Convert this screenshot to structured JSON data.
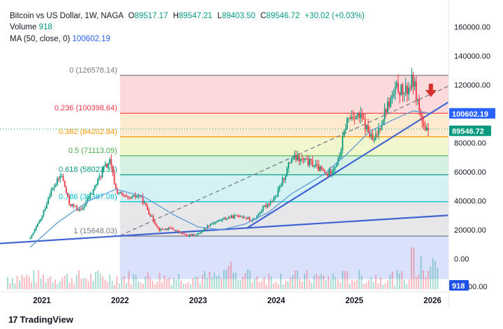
{
  "header": {
    "line1": "Bitcoin vs US Dollar, 1W, NAGA",
    "open_label": "O",
    "open": "89517.17",
    "high_label": "H",
    "high": "89547.21",
    "low_label": "L",
    "low": "89403.50",
    "close_label": "C",
    "close": "89546.72",
    "change": "+30.02 (+0.03%)",
    "volume_label": "Volume",
    "volume": "918",
    "ma_label": "MA (50, close, 0)",
    "ma_value": "100602.19"
  },
  "chart_data": {
    "type": "line",
    "title": "Bitcoin vs US Dollar, 1W, NAGA",
    "x_ticks": [
      "2021",
      "2022",
      "2023",
      "2024",
      "2025",
      "2026"
    ],
    "y_ticks": [
      "160000.00",
      "140000.00",
      "120000.00",
      "100000.00",
      "80000.00",
      "60000.00",
      "40000.00",
      "20000.00",
      "0.00"
    ],
    "volume_axis_label": "00.00",
    "ylim": [
      -15000,
      165000
    ],
    "price_series": [
      {
        "x": 2020.85,
        "y": 14000
      },
      {
        "x": 2021.0,
        "y": 29000
      },
      {
        "x": 2021.1,
        "y": 45000
      },
      {
        "x": 2021.25,
        "y": 58000
      },
      {
        "x": 2021.35,
        "y": 38000
      },
      {
        "x": 2021.5,
        "y": 33000
      },
      {
        "x": 2021.65,
        "y": 47000
      },
      {
        "x": 2021.8,
        "y": 63000
      },
      {
        "x": 2021.87,
        "y": 67000
      },
      {
        "x": 2021.95,
        "y": 47000
      },
      {
        "x": 2022.1,
        "y": 41000
      },
      {
        "x": 2022.25,
        "y": 44000
      },
      {
        "x": 2022.4,
        "y": 29000
      },
      {
        "x": 2022.5,
        "y": 20000
      },
      {
        "x": 2022.65,
        "y": 21000
      },
      {
        "x": 2022.85,
        "y": 16000
      },
      {
        "x": 2023.0,
        "y": 17000
      },
      {
        "x": 2023.15,
        "y": 24000
      },
      {
        "x": 2023.35,
        "y": 28000
      },
      {
        "x": 2023.55,
        "y": 30000
      },
      {
        "x": 2023.7,
        "y": 26000
      },
      {
        "x": 2023.85,
        "y": 36000
      },
      {
        "x": 2024.0,
        "y": 43000
      },
      {
        "x": 2024.2,
        "y": 70000
      },
      {
        "x": 2024.45,
        "y": 66000
      },
      {
        "x": 2024.65,
        "y": 58000
      },
      {
        "x": 2024.8,
        "y": 68000
      },
      {
        "x": 2024.9,
        "y": 95000
      },
      {
        "x": 2025.0,
        "y": 100000
      },
      {
        "x": 2025.1,
        "y": 96000
      },
      {
        "x": 2025.25,
        "y": 80000
      },
      {
        "x": 2025.4,
        "y": 103000
      },
      {
        "x": 2025.55,
        "y": 118000
      },
      {
        "x": 2025.65,
        "y": 114000
      },
      {
        "x": 2025.75,
        "y": 124000
      },
      {
        "x": 2025.82,
        "y": 106000
      },
      {
        "x": 2025.9,
        "y": 86000
      },
      {
        "x": 2025.96,
        "y": 89546.72
      }
    ],
    "ma_series": [
      {
        "x": 2020.85,
        "y": 8000
      },
      {
        "x": 2021.2,
        "y": 25000
      },
      {
        "x": 2021.6,
        "y": 40000
      },
      {
        "x": 2021.95,
        "y": 48000
      },
      {
        "x": 2022.3,
        "y": 43000
      },
      {
        "x": 2022.7,
        "y": 30000
      },
      {
        "x": 2023.0,
        "y": 22000
      },
      {
        "x": 2023.3,
        "y": 20000
      },
      {
        "x": 2023.6,
        "y": 24000
      },
      {
        "x": 2023.9,
        "y": 32000
      },
      {
        "x": 2024.2,
        "y": 45000
      },
      {
        "x": 2024.6,
        "y": 58000
      },
      {
        "x": 2024.9,
        "y": 72000
      },
      {
        "x": 2025.2,
        "y": 88000
      },
      {
        "x": 2025.5,
        "y": 96000
      },
      {
        "x": 2025.75,
        "y": 102000
      },
      {
        "x": 2025.96,
        "y": 100602.19
      }
    ],
    "fibonacci": [
      {
        "label": "0 (126578.14)",
        "level": 126578.14,
        "color": "#787b86",
        "fill": "#fbd3d5"
      },
      {
        "label": "0.236 (100398.64)",
        "level": 100398.64,
        "color": "#f23645",
        "fill": "#fde6c7"
      },
      {
        "label": "0.382 (84202.84)",
        "level": 84202.84,
        "color": "#ff9800",
        "fill": "#eef4c4"
      },
      {
        "label": "0.5 (71113.09)",
        "level": 71113.09,
        "color": "#4caf50",
        "fill": "#cdeedd"
      },
      {
        "label": "0.618 (58023.33)",
        "level": 58023.33,
        "color": "#089981",
        "fill": "#cdeff1"
      },
      {
        "label": "0.786 (39387.08)",
        "level": 39387.08,
        "color": "#00bcd4",
        "fill": "#e3e3e6"
      },
      {
        "label": "1 (15648.03)",
        "level": 15648.03,
        "color": "#787b86",
        "fill": "#d3dcf9"
      }
    ],
    "fib_fill_floor": -14000,
    "fib_x_start": 2022.0,
    "trendlines": [
      {
        "name": "long-term-support",
        "x1": 2020.0,
        "y1": 9000,
        "x2": 2026.2,
        "y2": 30000,
        "color": "#3f64d1",
        "dashed": false
      },
      {
        "name": "rising-support",
        "x1": 2023.62,
        "y1": 21000,
        "x2": 2026.2,
        "y2": 108000,
        "color": "#3f64d1",
        "dashed": false
      },
      {
        "name": "channel-dashed",
        "x1": 2022.0,
        "y1": 16000,
        "x2": 2026.2,
        "y2": 119000,
        "color": "#787b86",
        "dashed": true
      }
    ],
    "price_label": "89546.72",
    "price_label_color": "#089981",
    "ma_label": "100602.19",
    "ma_label_color": "#2962ff",
    "volume_label": "918",
    "volume_label_color": "#1e53e5",
    "arrow_color": "#d32f2f",
    "up_color": "#089981",
    "down_color": "#f23645",
    "ma_color": "#5b9bd5"
  },
  "branding": {
    "logo": "TradingView",
    "logo_icon": "tradingview-logo-icon"
  }
}
